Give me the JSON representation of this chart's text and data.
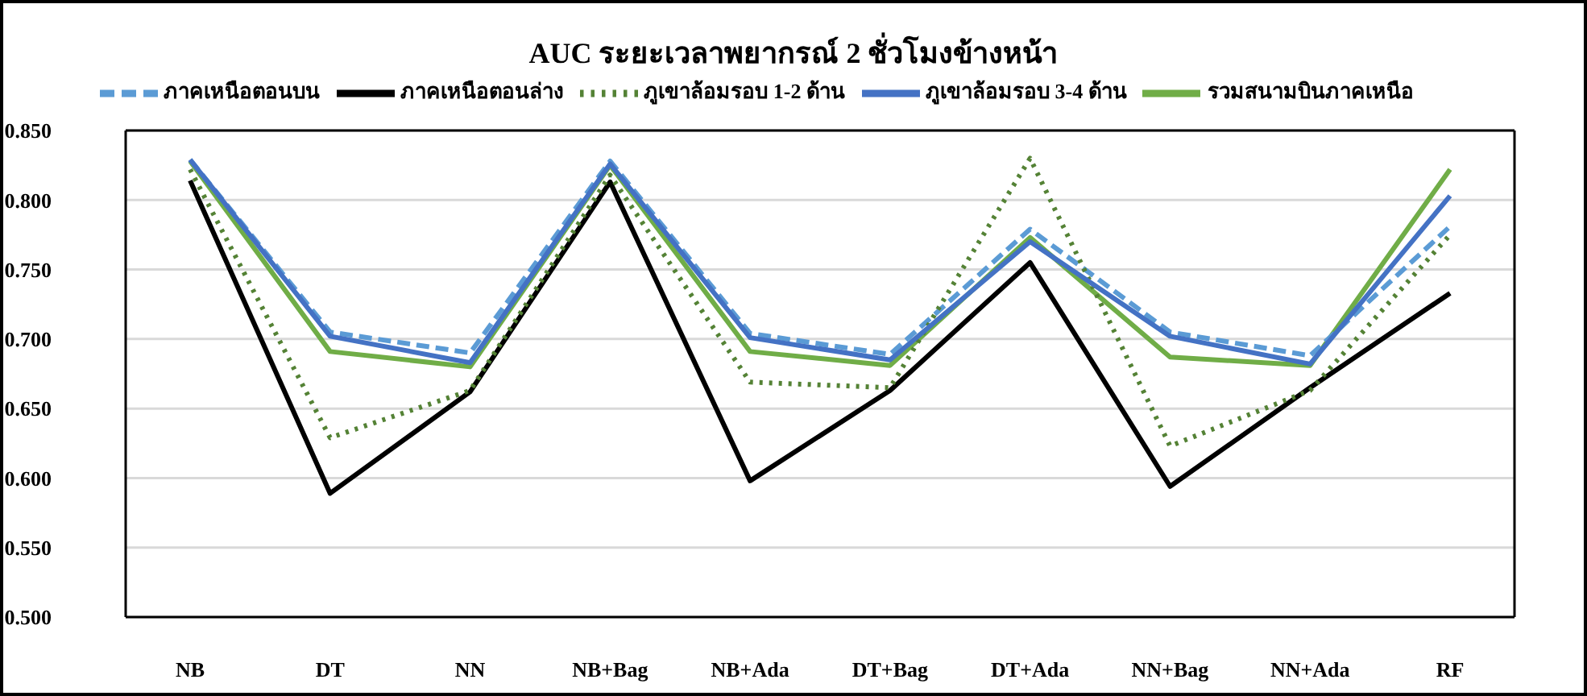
{
  "chart_data": {
    "type": "line",
    "title": "AUC  ระยะเวลาพยากรณ์ 2 ชั่วโมงข้างหน้า",
    "categories": [
      "NB",
      "DT",
      "NN",
      "NB+Bag",
      "NB+Ada",
      "DT+Bag",
      "DT+Ada",
      "NN+Bag",
      "NN+Ada",
      "RF"
    ],
    "series": [
      {
        "name": "รวมสนามบินภาคเหนือ",
        "color": "#70ad47",
        "line_style": "solid",
        "values": [
          0.828,
          0.691,
          0.68,
          0.825,
          0.691,
          0.681,
          0.773,
          0.687,
          0.681,
          0.822
        ]
      },
      {
        "name": "ภาคเหนือตอนบน",
        "color": "#5b9bd5",
        "line_style": "dashed",
        "values": [
          0.829,
          0.705,
          0.69,
          0.828,
          0.704,
          0.689,
          0.779,
          0.705,
          0.688,
          0.781
        ]
      },
      {
        "name": "ภาคเหนือตอนล่าง",
        "color": "#000000",
        "line_style": "solid",
        "values": [
          0.814,
          0.589,
          0.662,
          0.813,
          0.598,
          0.663,
          0.755,
          0.594,
          0.665,
          0.733
        ]
      },
      {
        "name": "ภูเขาล้อมรอบ 1-2 ด้าน",
        "color": "#548235",
        "line_style": "dotted",
        "values": [
          0.822,
          0.629,
          0.663,
          0.818,
          0.669,
          0.665,
          0.83,
          0.623,
          0.663,
          0.775
        ]
      },
      {
        "name": "ภูเขาล้อมรอบ 3-4 ด้าน",
        "color": "#4472c4",
        "line_style": "solid",
        "values": [
          0.829,
          0.702,
          0.683,
          0.826,
          0.701,
          0.685,
          0.77,
          0.702,
          0.682,
          0.803
        ]
      }
    ],
    "ylim": [
      0.5,
      0.85
    ],
    "yticks": [
      {
        "value": 0.5,
        "label": "0.500"
      },
      {
        "value": 0.55,
        "label": "0.550"
      },
      {
        "value": 0.6,
        "label": "0.600"
      },
      {
        "value": 0.65,
        "label": "0.650"
      },
      {
        "value": 0.7,
        "label": "0.700"
      },
      {
        "value": 0.75,
        "label": "0.750"
      },
      {
        "value": 0.8,
        "label": "0.800"
      },
      {
        "value": 0.85,
        "label": "0.850"
      }
    ],
    "grid": "y",
    "legend": "top",
    "marker": "none"
  }
}
